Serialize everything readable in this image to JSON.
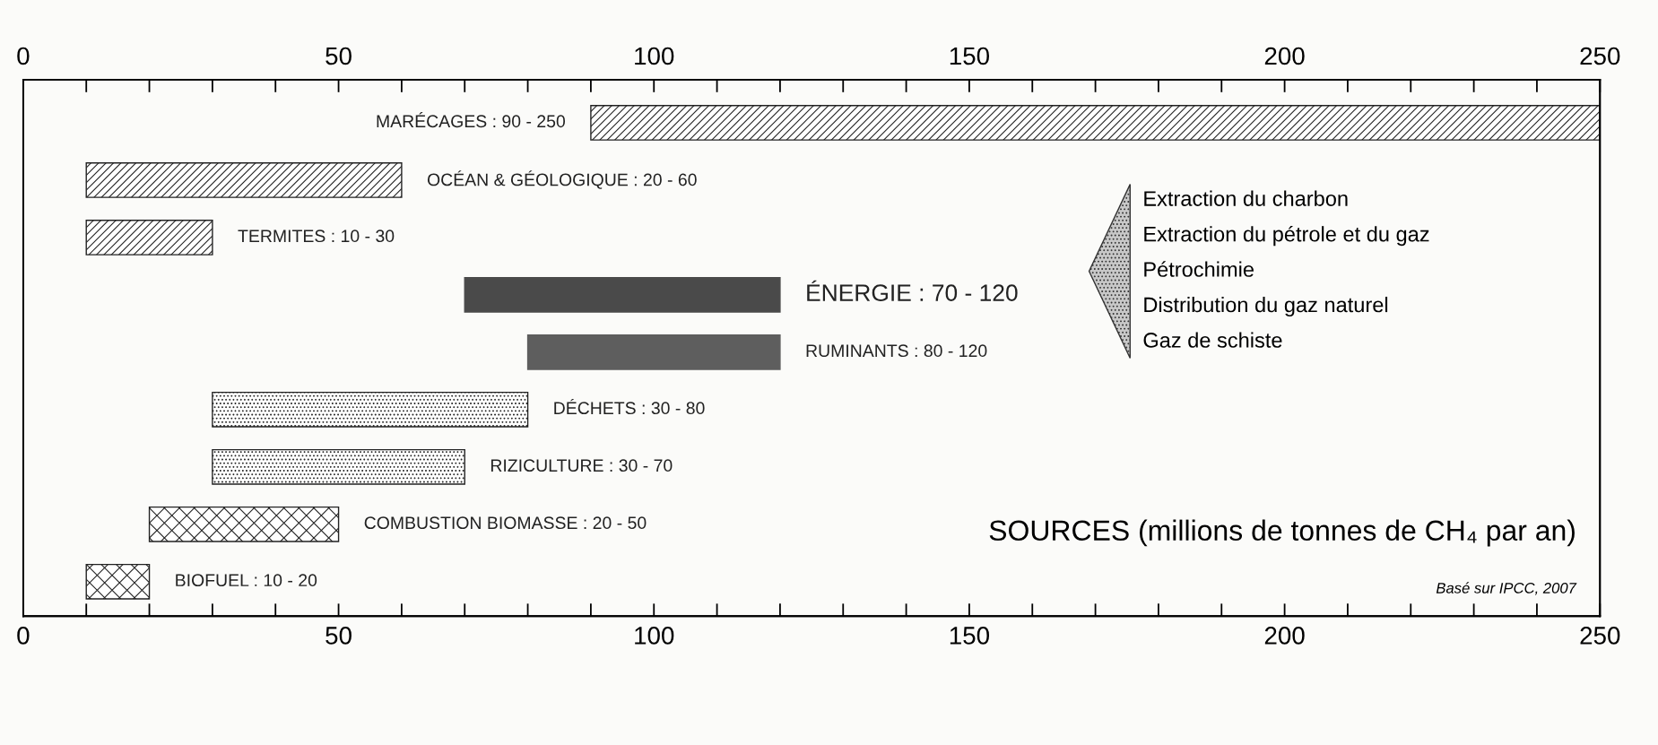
{
  "chart_data": {
    "type": "bar",
    "orientation": "horizontal",
    "title": "SOURCES (millions de tonnes de CH₄ par an)",
    "categories": [
      "MARÉCAGES : 90 - 250",
      "OCÉAN & GÉOLOGIQUE : 20 - 60",
      "TERMITES : 10 - 30",
      "ÉNERGIE : 70 - 120",
      "RUMINANTS : 80 - 120",
      "DÉCHETS : 30 - 80",
      "RIZICULTURE : 30 - 70",
      "COMBUSTION BIOMASSE : 20 - 50",
      "BIOFUEL : 10 - 20"
    ],
    "base": [
      90,
      10,
      10,
      70,
      80,
      30,
      30,
      20,
      10
    ],
    "values": [
      160,
      50,
      20,
      50,
      40,
      50,
      40,
      30,
      10
    ],
    "colors": [
      "#222222",
      "#222222",
      "#222222",
      "#4a4a4a",
      "#5e5e5e",
      "#222222",
      "#222222",
      "#222222",
      "#222222"
    ],
    "annotations": [
      "Extraction du charbon",
      "Extraction du pétrole et du gaz",
      "Pétrochimie",
      "Distribution du gaz naturel",
      "Gaz de schiste",
      "Basé sur IPCC, 2007"
    ],
    "xlim": [
      0,
      250
    ],
    "xticks": [
      0,
      {
        "value": 10,
        "label": null
      },
      {
        "value": 20,
        "label": null
      },
      {
        "value": 30,
        "label": null
      },
      {
        "value": 40,
        "label": null
      },
      50,
      {
        "value": 60,
        "label": null
      },
      {
        "value": 70,
        "label": null
      },
      {
        "value": 80,
        "label": null
      },
      {
        "value": 90,
        "label": null
      },
      100,
      {
        "value": 110,
        "label": null
      },
      {
        "value": 120,
        "label": null
      },
      {
        "value": 130,
        "label": null
      },
      {
        "value": 140,
        "label": null
      },
      150,
      {
        "value": 160,
        "label": null
      },
      {
        "value": 170,
        "label": null
      },
      {
        "value": 180,
        "label": null
      },
      {
        "value": 190,
        "label": null
      },
      200,
      {
        "value": 210,
        "label": null
      },
      {
        "value": 220,
        "label": null
      },
      {
        "value": 230,
        "label": null
      },
      {
        "value": 240,
        "label": null
      },
      250
    ],
    "x2lim": [
      0,
      250
    ],
    "x2ticks": [
      0,
      {
        "value": 10,
        "label": null
      },
      {
        "value": 20,
        "label": null
      },
      {
        "value": 30,
        "label": null
      },
      {
        "value": 40,
        "label": null
      },
      50,
      {
        "value": 60,
        "label": null
      },
      {
        "value": 70,
        "label": null
      },
      {
        "value": 80,
        "label": null
      },
      {
        "value": 90,
        "label": null
      },
      100,
      {
        "value": 110,
        "label": null
      },
      {
        "value": 120,
        "label": null
      },
      {
        "value": 130,
        "label": null
      },
      {
        "value": 140,
        "label": null
      },
      150,
      {
        "value": 160,
        "label": null
      },
      {
        "value": 170,
        "label": null
      },
      {
        "value": 180,
        "label": null
      },
      {
        "value": 190,
        "label": null
      },
      200,
      {
        "value": 210,
        "label": null
      },
      {
        "value": 220,
        "label": null
      },
      {
        "value": 230,
        "label": null
      },
      {
        "value": 240,
        "label": null
      },
      250
    ],
    "tick_labels": "x"
  }
}
